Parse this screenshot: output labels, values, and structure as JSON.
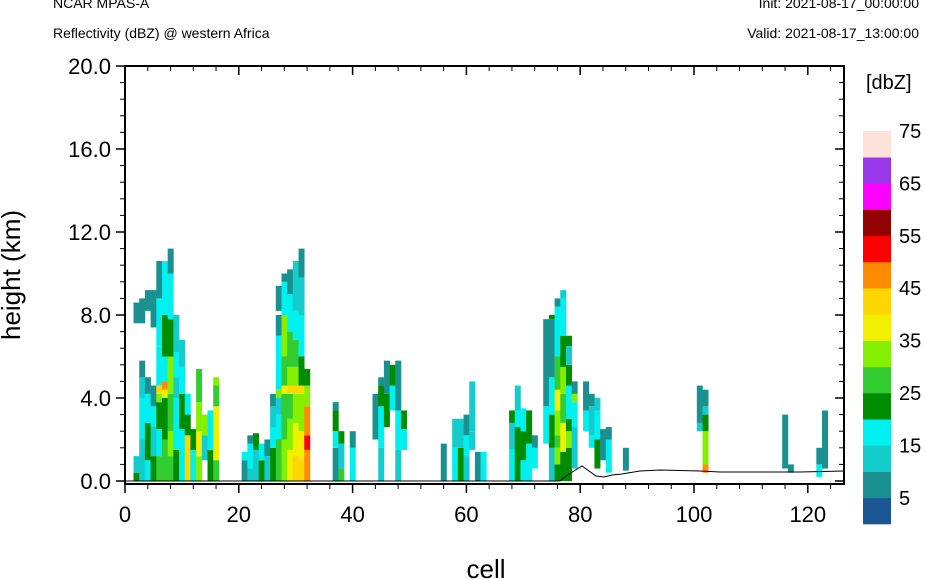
{
  "header": {
    "model": "NCAR MPAS-A",
    "field": "Reflectivity (dBZ) @ western Africa",
    "init": "Init: 2021-08-17_00:00:00",
    "valid": "Valid: 2021-08-17_13:00:00"
  },
  "chart_data": {
    "type": "heatmap",
    "xlabel": "cell",
    "ylabel": "height (km)",
    "xlim": [
      0,
      127
    ],
    "ylim": [
      0,
      20
    ],
    "x_ticks": [
      "0",
      "20",
      "40",
      "60",
      "80",
      "100",
      "120"
    ],
    "y_ticks": [
      "0.0",
      "4.0",
      "8.0",
      "12.0",
      "16.0",
      "20.0"
    ],
    "colorbar": {
      "units": "[dbZ]",
      "levels": [
        0,
        5,
        10,
        15,
        20,
        25,
        30,
        35,
        40,
        45,
        50,
        55,
        60,
        65,
        70,
        75,
        80
      ],
      "labels": [
        "5",
        "15",
        "25",
        "35",
        "45",
        "55",
        "65",
        "75"
      ],
      "colors": [
        "#1a5694",
        "#1b9090",
        "#14cccc",
        "#00f0f0",
        "#008c00",
        "#33cc33",
        "#84f000",
        "#f0f000",
        "#ffd700",
        "#ff8c00",
        "#ff0000",
        "#920000",
        "#ff00ff",
        "#9a37e8",
        "#fde2da"
      ]
    },
    "cells": [
      [
        2,
        0,
        0.4,
        20
      ],
      [
        2,
        0.4,
        1.2,
        10
      ],
      [
        2,
        7.6,
        8.6,
        5
      ],
      [
        3,
        0,
        2,
        10
      ],
      [
        3,
        2,
        4,
        15
      ],
      [
        3,
        4,
        5,
        10
      ],
      [
        3,
        5,
        5.8,
        5
      ],
      [
        3,
        7.6,
        8.8,
        5
      ],
      [
        4,
        0,
        1,
        15
      ],
      [
        4,
        1,
        2.8,
        20
      ],
      [
        4,
        2.8,
        4.2,
        15
      ],
      [
        4,
        4.2,
        5,
        5
      ],
      [
        4,
        8.2,
        9.2,
        5
      ],
      [
        5,
        0,
        1.2,
        20
      ],
      [
        5,
        1.2,
        2.6,
        10
      ],
      [
        5,
        2.6,
        3.6,
        15
      ],
      [
        5,
        3.6,
        4.6,
        5
      ],
      [
        5,
        7.4,
        9.2,
        5
      ],
      [
        6,
        0,
        1.2,
        25
      ],
      [
        6,
        1.2,
        2.5,
        15
      ],
      [
        6,
        2.5,
        3.8,
        20
      ],
      [
        6,
        3.8,
        4.2,
        30
      ],
      [
        6,
        4.2,
        4.6,
        40
      ],
      [
        6,
        4.6,
        6.5,
        15
      ],
      [
        6,
        6.5,
        8.8,
        15
      ],
      [
        6,
        8.8,
        10.6,
        5
      ],
      [
        7,
        0,
        2,
        25
      ],
      [
        7,
        2,
        4,
        20
      ],
      [
        7,
        4,
        4.4,
        35
      ],
      [
        7,
        4.4,
        4.8,
        45
      ],
      [
        7,
        4.8,
        6,
        15
      ],
      [
        7,
        6,
        8,
        20
      ],
      [
        7,
        8,
        10.6,
        15
      ],
      [
        8,
        0,
        1.2,
        25
      ],
      [
        8,
        1.2,
        2.4,
        30
      ],
      [
        8,
        2.4,
        4.2,
        25
      ],
      [
        8,
        4.2,
        6,
        30
      ],
      [
        8,
        6,
        7.8,
        20
      ],
      [
        8,
        7.8,
        10,
        15
      ],
      [
        8,
        10,
        11.2,
        5
      ],
      [
        9,
        0,
        1.5,
        20
      ],
      [
        9,
        1.5,
        4,
        15
      ],
      [
        9,
        4,
        5,
        10
      ],
      [
        9,
        5,
        6.2,
        15
      ],
      [
        9,
        6.2,
        8,
        10
      ],
      [
        10,
        0,
        2.5,
        15
      ],
      [
        10,
        2.5,
        4.2,
        20
      ],
      [
        10,
        4.2,
        5.5,
        15
      ],
      [
        10,
        5.5,
        6.8,
        10
      ],
      [
        11,
        0,
        2.2,
        40
      ],
      [
        11,
        2.2,
        3.2,
        20
      ],
      [
        11,
        3.2,
        4.2,
        15
      ],
      [
        12,
        0,
        1.5,
        15
      ],
      [
        12,
        1.5,
        2.5,
        20
      ],
      [
        13,
        0,
        1.2,
        30
      ],
      [
        13,
        1.2,
        2.4,
        35
      ],
      [
        13,
        2.4,
        3.8,
        30
      ],
      [
        13,
        3.8,
        5.4,
        25
      ],
      [
        14,
        1,
        2.2,
        10
      ],
      [
        14,
        2.2,
        3.2,
        30
      ],
      [
        15,
        0,
        1.5,
        20
      ],
      [
        15,
        1.5,
        3.4,
        15
      ],
      [
        16,
        0,
        1,
        25
      ],
      [
        16,
        1,
        3.6,
        35
      ],
      [
        16,
        3.6,
        4.6,
        25
      ],
      [
        16,
        4.6,
        5,
        30
      ],
      [
        21,
        0,
        1,
        5
      ],
      [
        21,
        1,
        1.4,
        15
      ],
      [
        22,
        0,
        0.6,
        10
      ],
      [
        22,
        0.6,
        1.8,
        15
      ],
      [
        22,
        1.8,
        2.2,
        5
      ],
      [
        23,
        0,
        1.5,
        10
      ],
      [
        23,
        1.5,
        2.3,
        20
      ],
      [
        24,
        0,
        1,
        20
      ],
      [
        24,
        1,
        1.8,
        15
      ],
      [
        25,
        0,
        1.2,
        10
      ],
      [
        25,
        1.2,
        2,
        5
      ],
      [
        26,
        0,
        1.6,
        20
      ],
      [
        26,
        1.6,
        2.6,
        15
      ],
      [
        26,
        2.6,
        3.6,
        10
      ],
      [
        26,
        3.6,
        4.2,
        5
      ],
      [
        27,
        0,
        2,
        25
      ],
      [
        27,
        2,
        3.2,
        15
      ],
      [
        27,
        3.2,
        4,
        10
      ],
      [
        27,
        4,
        4.4,
        30
      ],
      [
        27,
        4.4,
        7,
        15
      ],
      [
        27,
        7,
        8,
        5
      ],
      [
        27,
        8.2,
        9.4,
        5
      ],
      [
        28,
        0,
        2,
        30
      ],
      [
        28,
        2,
        4.2,
        25
      ],
      [
        28,
        4.2,
        4.6,
        35
      ],
      [
        28,
        4.6,
        6,
        25
      ],
      [
        28,
        6,
        8,
        30
      ],
      [
        28,
        8,
        9.6,
        15
      ],
      [
        28,
        9.6,
        10,
        5
      ],
      [
        29,
        0,
        1.5,
        35
      ],
      [
        29,
        1.5,
        3,
        30
      ],
      [
        29,
        3,
        4.2,
        25
      ],
      [
        29,
        4.2,
        4.6,
        40
      ],
      [
        29,
        4.6,
        5.5,
        30
      ],
      [
        29,
        5.5,
        7.2,
        25
      ],
      [
        29,
        7.2,
        9,
        15
      ],
      [
        29,
        9,
        10.2,
        5
      ],
      [
        30,
        0,
        1.2,
        40
      ],
      [
        30,
        1.2,
        2.8,
        35
      ],
      [
        30,
        2.8,
        4.2,
        30
      ],
      [
        30,
        4.2,
        4.6,
        40
      ],
      [
        30,
        4.6,
        5.5,
        30
      ],
      [
        30,
        5.5,
        6.8,
        25
      ],
      [
        30,
        6.8,
        8.2,
        15
      ],
      [
        30,
        8.2,
        10.6,
        10
      ],
      [
        31,
        0,
        1,
        40
      ],
      [
        31,
        1,
        2.4,
        35
      ],
      [
        31,
        2.4,
        4.2,
        30
      ],
      [
        31,
        4.2,
        4.6,
        40
      ],
      [
        31,
        4.6,
        6,
        20
      ],
      [
        31,
        6,
        8,
        15
      ],
      [
        31,
        8,
        9.8,
        10
      ],
      [
        31,
        9.8,
        11.2,
        5
      ],
      [
        32,
        0,
        1.5,
        45
      ],
      [
        32,
        1.5,
        2.2,
        50
      ],
      [
        32,
        2.2,
        3.6,
        45
      ],
      [
        32,
        3.6,
        4.6,
        30
      ],
      [
        32,
        4.6,
        5.4,
        20
      ],
      [
        37,
        0,
        1.6,
        5
      ],
      [
        37,
        1.6,
        2.4,
        15
      ],
      [
        37,
        2.4,
        3.4,
        20
      ],
      [
        37,
        3.4,
        3.8,
        5
      ],
      [
        38,
        0,
        0.6,
        25
      ],
      [
        38,
        0.6,
        1.8,
        10
      ],
      [
        38,
        1.8,
        2.4,
        20
      ],
      [
        40,
        0,
        1.6,
        15
      ],
      [
        40,
        1.6,
        2.4,
        5
      ],
      [
        44,
        2,
        4.2,
        5
      ],
      [
        45,
        0,
        1.6,
        10
      ],
      [
        45,
        1.6,
        3.6,
        15
      ],
      [
        45,
        3.6,
        4.6,
        20
      ],
      [
        45,
        4.6,
        5,
        5
      ],
      [
        46,
        2.6,
        4.2,
        20
      ],
      [
        46,
        4.2,
        5.8,
        5
      ],
      [
        47,
        3.4,
        4.6,
        15
      ],
      [
        47,
        4.6,
        5.6,
        20
      ],
      [
        48,
        0,
        1.5,
        10
      ],
      [
        48,
        1.5,
        3.4,
        15
      ],
      [
        48,
        3.4,
        5.8,
        5
      ],
      [
        49,
        1.5,
        2.5,
        15
      ],
      [
        49,
        2.5,
        3.4,
        20
      ],
      [
        56,
        0,
        1.8,
        5
      ],
      [
        58,
        0,
        1.6,
        15
      ],
      [
        58,
        1.6,
        3,
        10
      ],
      [
        59,
        0,
        1.6,
        20
      ],
      [
        59,
        1.6,
        3,
        10
      ],
      [
        60,
        0,
        1.2,
        10
      ],
      [
        60,
        1.2,
        2.2,
        15
      ],
      [
        60,
        2.2,
        3.2,
        5
      ],
      [
        61,
        1.5,
        2.4,
        10
      ],
      [
        61,
        2.4,
        4.8,
        10
      ],
      [
        62,
        0,
        1.4,
        5
      ],
      [
        63,
        0,
        1.4,
        15
      ],
      [
        68,
        0,
        1.5,
        15
      ],
      [
        68,
        1.5,
        2.8,
        10
      ],
      [
        68,
        2.8,
        3.4,
        20
      ],
      [
        69,
        0,
        2.6,
        20
      ],
      [
        69,
        2.6,
        3.4,
        15
      ],
      [
        69,
        3.4,
        4.6,
        10
      ],
      [
        70,
        0,
        1,
        15
      ],
      [
        70,
        1,
        2.4,
        20
      ],
      [
        70,
        2.4,
        3.5,
        15
      ],
      [
        71,
        0,
        1.8,
        15
      ],
      [
        71,
        1.8,
        3.4,
        20
      ],
      [
        72,
        0.6,
        1.6,
        15
      ],
      [
        72,
        1.6,
        2.2,
        5
      ],
      [
        74,
        1.8,
        3.6,
        15
      ],
      [
        74,
        3.6,
        7.8,
        5
      ],
      [
        75,
        0,
        1.6,
        10
      ],
      [
        75,
        1.6,
        3.2,
        20
      ],
      [
        75,
        3.2,
        5,
        15
      ],
      [
        75,
        5,
        7.8,
        5
      ],
      [
        75,
        7.8,
        8,
        20
      ],
      [
        76,
        0,
        0.8,
        20
      ],
      [
        76,
        0.8,
        1.6,
        30
      ],
      [
        76,
        1.6,
        2.2,
        25
      ],
      [
        76,
        2.2,
        3.4,
        30
      ],
      [
        76,
        3.4,
        4.4,
        35
      ],
      [
        76,
        4.4,
        6,
        25
      ],
      [
        76,
        6,
        7.8,
        15
      ],
      [
        76,
        7.8,
        8.4,
        15
      ],
      [
        76,
        8.4,
        8.8,
        5
      ],
      [
        77,
        0,
        1.4,
        20
      ],
      [
        77,
        1.4,
        2.8,
        35
      ],
      [
        77,
        2.8,
        4.2,
        25
      ],
      [
        77,
        4.2,
        5.5,
        30
      ],
      [
        77,
        5.5,
        7,
        20
      ],
      [
        77,
        7,
        8.8,
        15
      ],
      [
        77,
        8.8,
        9.2,
        10
      ],
      [
        78,
        0,
        1.6,
        20
      ],
      [
        78,
        1.6,
        2.4,
        30
      ],
      [
        78,
        2.4,
        3,
        20
      ],
      [
        78,
        3,
        4.6,
        15
      ],
      [
        78,
        4.6,
        5.6,
        20
      ],
      [
        78,
        5.6,
        6.5,
        10
      ],
      [
        78,
        6.5,
        7,
        20
      ],
      [
        79,
        0.6,
        2.6,
        10
      ],
      [
        79,
        2.6,
        3.8,
        15
      ],
      [
        79,
        3.8,
        4.2,
        30
      ],
      [
        79,
        4.2,
        4.8,
        5
      ],
      [
        81,
        2.4,
        3.4,
        15
      ],
      [
        81,
        3.4,
        4.8,
        5
      ],
      [
        82,
        1.6,
        2.2,
        15
      ],
      [
        82,
        2.2,
        3.6,
        10
      ],
      [
        82,
        3.6,
        4.2,
        5
      ],
      [
        83,
        0.6,
        2,
        20
      ],
      [
        83,
        2,
        3.4,
        15
      ],
      [
        83,
        3.4,
        4,
        10
      ],
      [
        84,
        1,
        2.5,
        5
      ],
      [
        85,
        0.4,
        2,
        15
      ],
      [
        85,
        2,
        2.6,
        5
      ],
      [
        88,
        0.5,
        1.6,
        5
      ],
      [
        101,
        2.4,
        2.8,
        10
      ],
      [
        101,
        2.8,
        4.6,
        5
      ],
      [
        102,
        0.4,
        0.8,
        45
      ],
      [
        102,
        0.8,
        2.4,
        30
      ],
      [
        102,
        2.4,
        3.2,
        20
      ],
      [
        102,
        3.2,
        3.6,
        10
      ],
      [
        102,
        3.6,
        4.4,
        5
      ],
      [
        116,
        0.6,
        3.2,
        5
      ],
      [
        117,
        0.4,
        0.8,
        5
      ],
      [
        122,
        0.2,
        0.8,
        15
      ],
      [
        122,
        0.8,
        1.6,
        5
      ],
      [
        123,
        0.6,
        3.4,
        5
      ]
    ]
  }
}
